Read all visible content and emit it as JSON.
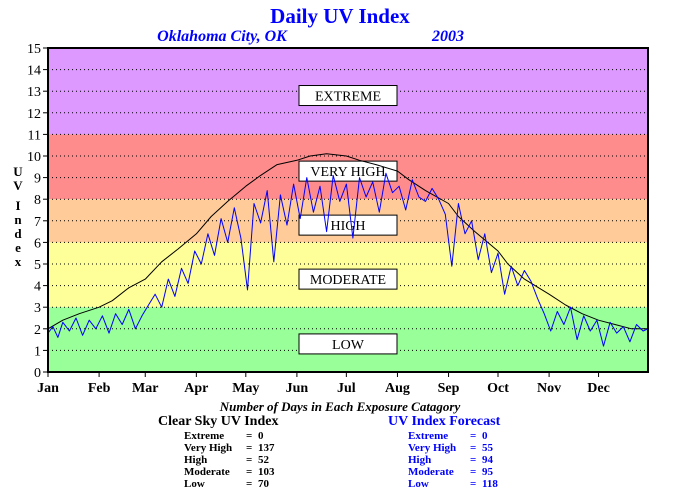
{
  "colors": {
    "extreme": "#dd99ff",
    "very_high": "#ff8c8c",
    "high": "#ffcc99",
    "moderate": "#ffff99",
    "low": "#99ff99",
    "clear_sky": "#000000",
    "forecast": "#0000ff",
    "title": "#0000ff"
  },
  "chart_data": {
    "type": "line",
    "title": "Daily UV Index",
    "subtitle_location": "Oklahoma City, OK",
    "subtitle_year": "2003",
    "ylabel": "UV Index",
    "ylim": [
      0,
      15
    ],
    "yticks": [
      "0",
      "1",
      "2",
      "3",
      "4",
      "5",
      "6",
      "7",
      "8",
      "9",
      "10",
      "11",
      "12",
      "13",
      "14",
      "15"
    ],
    "x_unit": "day of year",
    "xlim": [
      1,
      365
    ],
    "months": [
      {
        "label": "Jan",
        "day": 1
      },
      {
        "label": "Feb",
        "day": 32
      },
      {
        "label": "Mar",
        "day": 60
      },
      {
        "label": "Apr",
        "day": 91
      },
      {
        "label": "May",
        "day": 121
      },
      {
        "label": "Jun",
        "day": 152
      },
      {
        "label": "Jul",
        "day": 182
      },
      {
        "label": "Aug",
        "day": 213
      },
      {
        "label": "Sep",
        "day": 244
      },
      {
        "label": "Oct",
        "day": 274
      },
      {
        "label": "Nov",
        "day": 305
      },
      {
        "label": "Dec",
        "day": 335
      }
    ],
    "grid": true,
    "bands": [
      {
        "label": "EXTREME",
        "from": 11,
        "to": 15,
        "label_at": 12.8,
        "color_key": "extreme"
      },
      {
        "label": "VERY HIGH",
        "from": 8,
        "to": 11,
        "label_at": 9.3,
        "color_key": "very_high"
      },
      {
        "label": "HIGH",
        "from": 6,
        "to": 8,
        "label_at": 6.8,
        "color_key": "high"
      },
      {
        "label": "MODERATE",
        "from": 3,
        "to": 6,
        "label_at": 4.3,
        "color_key": "moderate"
      },
      {
        "label": "LOW",
        "from": 0,
        "to": 3,
        "label_at": 1.3,
        "color_key": "low"
      }
    ],
    "series": [
      {
        "name": "Clear Sky UV Index",
        "color_key": "clear_sky",
        "x": [
          1,
          10,
          20,
          32,
          40,
          50,
          60,
          70,
          80,
          91,
          100,
          110,
          121,
          130,
          140,
          152,
          160,
          170,
          182,
          190,
          200,
          213,
          220,
          230,
          244,
          250,
          260,
          274,
          280,
          290,
          305,
          315,
          325,
          335,
          345,
          355,
          365
        ],
        "y": [
          2.0,
          2.4,
          2.7,
          3.0,
          3.3,
          3.9,
          4.3,
          5.1,
          5.7,
          6.4,
          7.2,
          7.9,
          8.6,
          9.1,
          9.6,
          9.8,
          10.0,
          10.1,
          10.0,
          9.8,
          9.6,
          9.3,
          8.9,
          8.4,
          7.8,
          7.2,
          6.5,
          5.6,
          5.0,
          4.3,
          3.6,
          3.1,
          2.7,
          2.4,
          2.2,
          2.0,
          2.0
        ]
      },
      {
        "name": "UV Index Forecast",
        "color_key": "forecast",
        "x": [
          1,
          4,
          7,
          10,
          14,
          18,
          22,
          26,
          30,
          34,
          38,
          42,
          46,
          50,
          54,
          58,
          62,
          66,
          70,
          74,
          78,
          82,
          86,
          90,
          94,
          98,
          102,
          106,
          110,
          114,
          118,
          122,
          126,
          130,
          134,
          138,
          142,
          146,
          150,
          154,
          158,
          162,
          166,
          170,
          174,
          178,
          182,
          186,
          190,
          194,
          198,
          202,
          206,
          210,
          214,
          218,
          222,
          226,
          230,
          234,
          238,
          242,
          246,
          250,
          254,
          258,
          262,
          266,
          270,
          274,
          278,
          282,
          286,
          290,
          294,
          298,
          302,
          306,
          310,
          314,
          318,
          322,
          326,
          330,
          334,
          338,
          342,
          346,
          350,
          354,
          358,
          362,
          365
        ],
        "y": [
          1.8,
          2.1,
          1.6,
          2.3,
          1.9,
          2.5,
          1.7,
          2.4,
          2.0,
          2.6,
          1.8,
          2.7,
          2.2,
          2.9,
          2.0,
          2.6,
          3.1,
          3.6,
          3.0,
          4.3,
          3.5,
          4.8,
          4.1,
          5.6,
          5.0,
          6.4,
          5.4,
          7.1,
          6.0,
          7.6,
          6.2,
          3.8,
          7.8,
          6.9,
          8.4,
          5.1,
          8.2,
          6.8,
          8.7,
          7.1,
          9.0,
          7.4,
          8.6,
          6.5,
          9.1,
          7.9,
          8.7,
          6.2,
          9.0,
          8.1,
          8.8,
          7.4,
          9.2,
          8.3,
          8.6,
          7.5,
          8.9,
          8.1,
          7.9,
          8.5,
          8.0,
          7.3,
          4.9,
          7.8,
          6.4,
          7.0,
          5.2,
          6.4,
          4.6,
          5.5,
          3.6,
          4.9,
          4.0,
          4.7,
          4.2,
          3.4,
          2.7,
          1.9,
          2.8,
          2.2,
          3.0,
          1.5,
          2.6,
          1.9,
          2.4,
          1.2,
          2.3,
          1.8,
          2.1,
          1.4,
          2.2,
          1.9,
          2.0
        ]
      }
    ]
  },
  "summary": {
    "title": "Number of Days in Each Exposure Catagory",
    "clear_sky": {
      "header": "Clear Sky UV Index",
      "rows": [
        {
          "label": "Extreme",
          "value": "0"
        },
        {
          "label": "Very High",
          "value": "137"
        },
        {
          "label": "High",
          "value": "52"
        },
        {
          "label": "Moderate",
          "value": "103"
        },
        {
          "label": "Low",
          "value": "70"
        }
      ]
    },
    "forecast": {
      "header": "UV Index Forecast",
      "rows": [
        {
          "label": "Extreme",
          "value": "0"
        },
        {
          "label": "Very High",
          "value": "55"
        },
        {
          "label": "High",
          "value": "94"
        },
        {
          "label": "Moderate",
          "value": "95"
        },
        {
          "label": "Low",
          "value": "118"
        }
      ]
    }
  }
}
